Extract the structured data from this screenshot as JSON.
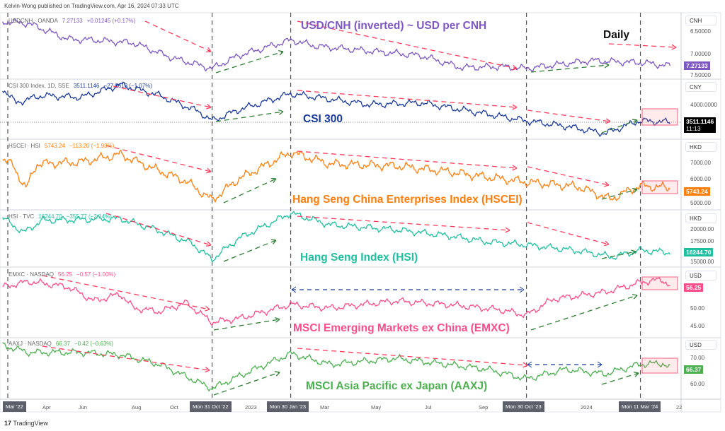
{
  "header": {
    "published": "Kelvin-Wong published on TradingView.com, Apr 16, 2024 07:33 UTC"
  },
  "timeframe": "Daily",
  "footer": {
    "brand": "TradingView",
    "logo": "tradingview-logo-icon"
  },
  "colors": {
    "usdcnh": "#7e57c2",
    "csi": "#1a3a9a",
    "hscei": "#ff7f0e",
    "hsi": "#1fbfa0",
    "emxc": "#ff4d8a",
    "aaxj": "#4caf50",
    "down_arrow": "#ff3b5c",
    "up_arrow": "#2e7d32",
    "markers": "#555555"
  },
  "chart_data": {
    "type": "line",
    "x_unit": "months since Mar 1, 2022",
    "x_axis": {
      "labels": [
        "Mar '22",
        "Apr",
        "Jun",
        "Aug",
        "Oct",
        "2023",
        "Mar",
        "May",
        "Jul",
        "Sep",
        "2024",
        "22"
      ],
      "highlighted": [
        "Mon 31 Oct '22",
        "Mon 30 Jan '23",
        "Mon 30 Oct '23",
        "Mon 11 Mar '24"
      ]
    },
    "panels": [
      {
        "id": "usdcnh",
        "legend": {
          "symbol": "USDCNH · OANDA",
          "last": "7.27133",
          "change": "+0.01245 (+0.17%)"
        },
        "title": "USD/CNH (inverted) ~ USD per CNH",
        "unit": "CNH",
        "inverted": true,
        "ticks": [
          "6.50000",
          "7.00000",
          "7.50000"
        ],
        "price_label": "7.27133",
        "points": [
          [
            0,
            6.33
          ],
          [
            1,
            6.37
          ],
          [
            2.5,
            6.7
          ],
          [
            3.5,
            6.72
          ],
          [
            5,
            6.78
          ],
          [
            6.5,
            7.1
          ],
          [
            8,
            7.32
          ],
          [
            9,
            7.05
          ],
          [
            11,
            6.72
          ],
          [
            12,
            6.85
          ],
          [
            14,
            6.95
          ],
          [
            16,
            7.05
          ],
          [
            17.5,
            7.3
          ],
          [
            19,
            7.28
          ],
          [
            20,
            7.32
          ],
          [
            21,
            7.25
          ],
          [
            22.5,
            7.15
          ],
          [
            23.5,
            7.18
          ],
          [
            24.5,
            7.2
          ],
          [
            25.5,
            7.27
          ]
        ]
      },
      {
        "id": "csi",
        "legend": {
          "symbol": "CSI 300 Index, 1D, SSE",
          "last": "3511.1146",
          "change": "−27.9613 (−1.07%)"
        },
        "title": "CSI 300",
        "unit": "CNY",
        "ticks": [
          "4000.0000"
        ],
        "price_label": "3511.1146",
        "price_time": "11:13",
        "points": [
          [
            0,
            4450
          ],
          [
            0.5,
            4050
          ],
          [
            1.5,
            4250
          ],
          [
            3,
            4200
          ],
          [
            4.5,
            4550
          ],
          [
            6,
            4250
          ],
          [
            7.5,
            3800
          ],
          [
            8,
            3550
          ],
          [
            9,
            3850
          ],
          [
            11,
            4300
          ],
          [
            12,
            4200
          ],
          [
            14,
            4000
          ],
          [
            16,
            4050
          ],
          [
            18,
            3800
          ],
          [
            20,
            3550
          ],
          [
            21.5,
            3400
          ],
          [
            23,
            3200
          ],
          [
            24.3,
            3550
          ],
          [
            25.5,
            3511
          ]
        ]
      },
      {
        "id": "hscei",
        "legend": {
          "symbol": "HSCEI · HSI",
          "last": "5743.24",
          "change": "−113.20 (−1.93%)"
        },
        "title": "Hang Seng China Enterprises Index (HSCEI)",
        "unit": "HKD",
        "ticks": [
          "7000.00",
          "6000.00",
          "5000.00"
        ],
        "price_label": "5743.24",
        "points": [
          [
            0,
            7300
          ],
          [
            0.4,
            6900
          ],
          [
            0.9,
            5700
          ],
          [
            1.3,
            7000
          ],
          [
            3,
            7100
          ],
          [
            4.5,
            7500
          ],
          [
            5.5,
            6900
          ],
          [
            7,
            6100
          ],
          [
            8,
            5100
          ],
          [
            9,
            6200
          ],
          [
            11,
            7600
          ],
          [
            12.5,
            7000
          ],
          [
            15,
            6900
          ],
          [
            17,
            6600
          ],
          [
            18,
            6400
          ],
          [
            20,
            6050
          ],
          [
            22,
            5800
          ],
          [
            23.2,
            5150
          ],
          [
            24.3,
            5850
          ],
          [
            25.5,
            5743
          ]
        ]
      },
      {
        "id": "hsi",
        "legend": {
          "symbol": "HSI · TVC",
          "last": "16244.70",
          "change": "−355.77 (−2.14%)"
        },
        "title": "Hang Seng Index (HSI)",
        "unit": "HKD",
        "ticks": [
          "20000.00",
          "17500.00",
          "15000.00"
        ],
        "price_label": "16244.70",
        "points": [
          [
            0,
            22000
          ],
          [
            0.8,
            19500
          ],
          [
            1.5,
            21500
          ],
          [
            4.5,
            21800
          ],
          [
            6,
            19800
          ],
          [
            7.2,
            17800
          ],
          [
            8,
            15100
          ],
          [
            9,
            18500
          ],
          [
            11,
            22700
          ],
          [
            12.5,
            20800
          ],
          [
            15,
            20000
          ],
          [
            17,
            19000
          ],
          [
            18.5,
            18000
          ],
          [
            20,
            17500
          ],
          [
            22,
            16500
          ],
          [
            23.3,
            15500
          ],
          [
            24.3,
            16600
          ],
          [
            25.5,
            16244
          ]
        ]
      },
      {
        "id": "emxc",
        "legend": {
          "symbol": "EMXC · NASDAQ",
          "last": "56.25",
          "change": "−0.57 (−1.00%)"
        },
        "title": "MSCI Emerging Markets ex China (EMXC)",
        "unit": "USD",
        "ticks": [
          "50.00",
          "45.00"
        ],
        "price_label": "56.25",
        "points": [
          [
            0,
            56
          ],
          [
            1,
            57.5
          ],
          [
            2.5,
            56
          ],
          [
            3.5,
            52
          ],
          [
            4.5,
            54
          ],
          [
            5,
            50
          ],
          [
            6,
            49
          ],
          [
            7,
            51.5
          ],
          [
            8,
            46
          ],
          [
            9,
            47
          ],
          [
            11,
            51
          ],
          [
            12.5,
            50
          ],
          [
            15,
            52
          ],
          [
            17,
            51
          ],
          [
            19,
            49.5
          ],
          [
            20,
            48
          ],
          [
            21,
            52.5
          ],
          [
            23,
            54.5
          ],
          [
            24.5,
            57.5
          ],
          [
            25.2,
            58
          ],
          [
            25.5,
            56.25
          ]
        ]
      },
      {
        "id": "aaxj",
        "legend": {
          "symbol": "AAXJ · NASDAQ",
          "last": "66.37",
          "change": "−0.42 (−0.63%)"
        },
        "title": "MSCI Asia Pacific ex Japan (AAXJ)",
        "unit": "USD",
        "ticks": [
          "70.00",
          "60.00"
        ],
        "price_label": "66.37",
        "points": [
          [
            0,
            76
          ],
          [
            1,
            73
          ],
          [
            3,
            73
          ],
          [
            4.5,
            72
          ],
          [
            6,
            68
          ],
          [
            7.2,
            62
          ],
          [
            8,
            58
          ],
          [
            9,
            63
          ],
          [
            11,
            72.5
          ],
          [
            12.5,
            68
          ],
          [
            15,
            70.5
          ],
          [
            17,
            68
          ],
          [
            18.5,
            66
          ],
          [
            20,
            62
          ],
          [
            21.5,
            66
          ],
          [
            23,
            64
          ],
          [
            24.3,
            68
          ],
          [
            25.2,
            68.5
          ],
          [
            25.5,
            66.37
          ]
        ]
      }
    ]
  }
}
